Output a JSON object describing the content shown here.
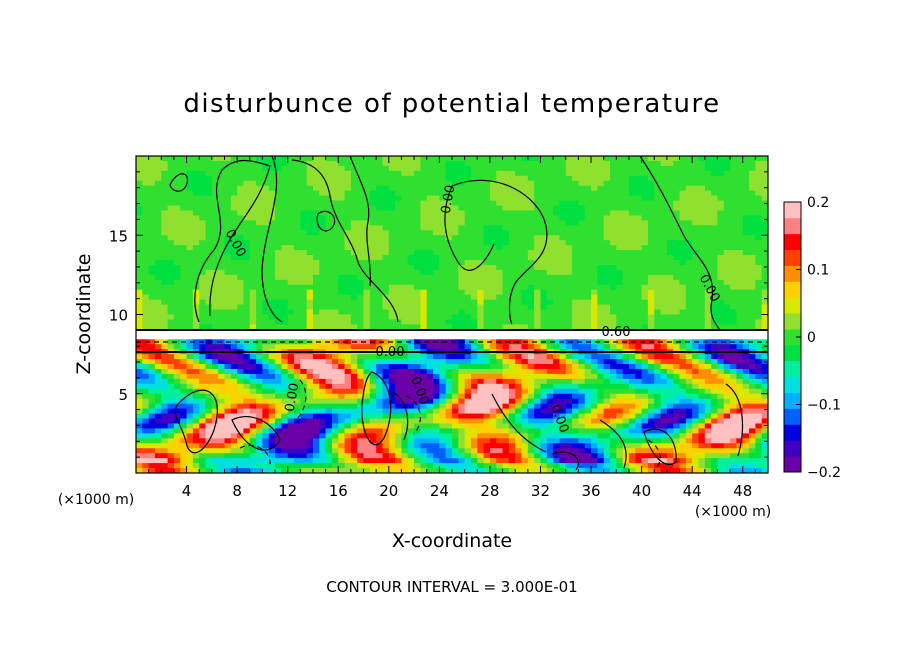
{
  "chart_data": {
    "type": "heatmap",
    "title": "disturbunce of potential temperature",
    "xlabel": "X-coordinate",
    "ylabel": "Z-coordinate",
    "x_unit": "(×1000 m)",
    "y_unit": "(×1000 m)",
    "xlim": [
      0,
      50
    ],
    "ylim": [
      0,
      20
    ],
    "x_ticks": [
      4,
      8,
      12,
      16,
      20,
      24,
      28,
      32,
      36,
      40,
      44,
      48
    ],
    "y_ticks": [
      5,
      10,
      15
    ],
    "colorbar": {
      "range": [
        -0.2,
        0.2
      ],
      "tick_values": [
        0.2,
        0.1,
        0,
        -0.1,
        -0.2
      ],
      "tick_labels": [
        "0.2",
        "0.1",
        "0",
        "−0.1",
        "−0.2"
      ],
      "colors": [
        "#6a00a8",
        "#4000c0",
        "#0000e0",
        "#0060ff",
        "#00b0ff",
        "#00e0e0",
        "#00f0a0",
        "#00e040",
        "#30e030",
        "#90e030",
        "#d8e800",
        "#ffd000",
        "#ff9000",
        "#ff4000",
        "#ff0000",
        "#ff8080",
        "#ffc0c0"
      ]
    },
    "contour_labels": [
      "0.00",
      "0.00",
      "0.00",
      "0.00",
      "0.60",
      "0.00",
      "0.00",
      "0.00"
    ],
    "footer": "CONTOUR INTERVAL = 3.000E-01",
    "grid": false
  },
  "theme": {
    "neutral_color": "#3ee03e",
    "high_color": "#ff2020",
    "low_color": "#1020d0"
  }
}
